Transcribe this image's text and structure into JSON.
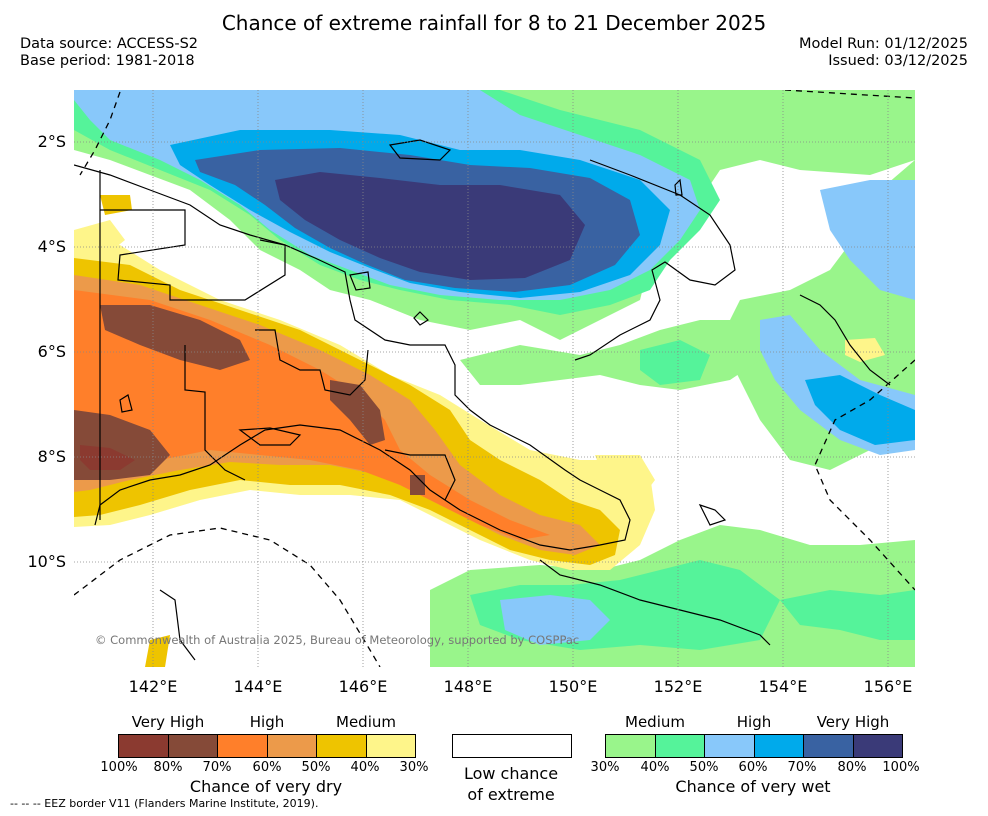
{
  "header": {
    "title": "Chance of extreme rainfall for 8 to 21 December 2025",
    "data_source": "Data source: ACCESS-S2",
    "base_period": "Base period: 1981-2018",
    "model_run": "Model Run: 01/12/2025",
    "issued": "Issued: 03/12/2025"
  },
  "axes": {
    "lat_labels": [
      "2°S",
      "4°S",
      "6°S",
      "8°S",
      "10°S"
    ],
    "lon_labels": [
      "142°E",
      "144°E",
      "146°E",
      "148°E",
      "150°E",
      "152°E",
      "154°E",
      "156°E"
    ]
  },
  "copyright": "© Commonwealth of Australia 2025, Bureau of Meteorology, supported by COSPPac",
  "legend": {
    "dry": {
      "titles": [
        "Very High",
        "High",
        "Medium"
      ],
      "colors": [
        "#8b3a30",
        "#854a38",
        "#ff7f2a",
        "#ec9a4a",
        "#eec400",
        "#fef58a"
      ],
      "ticks": [
        "100%",
        "80%",
        "70%",
        "60%",
        "50%",
        "40%",
        "30%"
      ],
      "caption": "Chance of very dry"
    },
    "neutral": {
      "line1": "Low chance",
      "line2": "of extreme"
    },
    "wet": {
      "titles": [
        "Medium",
        "High",
        "Very High"
      ],
      "colors": [
        "#99f58b",
        "#55f39a",
        "#88c8fa",
        "#00aaeb",
        "#3962a2",
        "#3a3a78"
      ],
      "ticks": [
        "30%",
        "40%",
        "50%",
        "60%",
        "70%",
        "80%",
        "100%"
      ],
      "caption": "Chance of very wet"
    }
  },
  "footnote": "-- -- -- EEZ border V11 (Flanders Marine Institute, 2019).",
  "colors": {
    "very_dry_1": "#8b3a30",
    "very_dry_2": "#854a38",
    "dry_high_1": "#ff7f2a",
    "dry_high_2": "#ec9a4a",
    "dry_med_1": "#eec400",
    "dry_med_2": "#fef58a",
    "wet_med_1": "#99f58b",
    "wet_med_2": "#55f39a",
    "wet_high_1": "#88c8fa",
    "wet_high_2": "#00aaeb",
    "wet_vh_1": "#3962a2",
    "wet_vh_2": "#3a3a78"
  }
}
